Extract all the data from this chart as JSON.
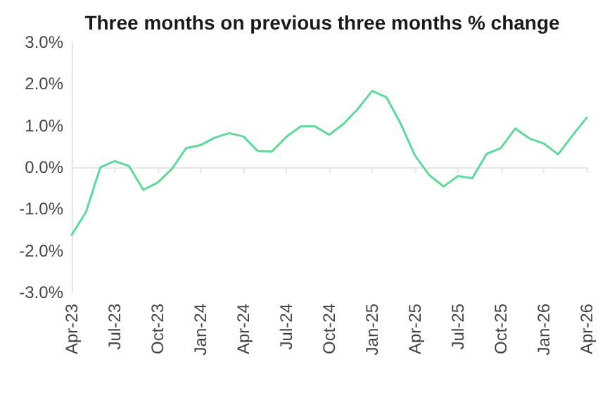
{
  "chart_data": {
    "type": "line",
    "title": "Three months on previous three months % change",
    "categories": [
      "Apr-23",
      null,
      null,
      "Jul-23",
      null,
      null,
      "Oct-23",
      null,
      null,
      "Jan-24",
      null,
      null,
      "Apr-24",
      null,
      null,
      "Jul-24",
      null,
      null,
      "Oct-24",
      null,
      null,
      "Jan-25",
      null,
      null,
      "Apr-25",
      null,
      null,
      "Jul-25",
      null,
      null,
      "Oct-25",
      null,
      null,
      "Jan-26",
      null,
      null,
      "Apr-26"
    ],
    "series": [
      {
        "color": "#5fd89a",
        "values": [
          -1.62,
          -1.07,
          0.0,
          0.15,
          0.03,
          -0.54,
          -0.37,
          -0.04,
          0.46,
          0.53,
          0.71,
          0.82,
          0.74,
          0.39,
          0.38,
          0.73,
          0.98,
          0.98,
          0.78,
          1.04,
          1.4,
          1.83,
          1.68,
          1.04,
          0.28,
          -0.19,
          -0.46,
          -0.21,
          -0.26,
          0.32,
          0.46,
          0.93,
          0.69,
          0.57,
          0.31,
          0.76,
          1.19
        ]
      }
    ],
    "ylim": [
      -3,
      3
    ],
    "yticks": [
      {
        "value": -3,
        "label": "-3.0%"
      },
      {
        "value": -2,
        "label": "-2.0%"
      },
      {
        "value": -1,
        "label": "-1.0%"
      },
      {
        "value": 0,
        "label": "0.0%"
      },
      {
        "value": 1,
        "label": "1.0%"
      },
      {
        "value": 2,
        "label": "2.0%"
      },
      {
        "value": 3,
        "label": "3.0%"
      }
    ],
    "marker": "none",
    "line_style": "solid"
  }
}
